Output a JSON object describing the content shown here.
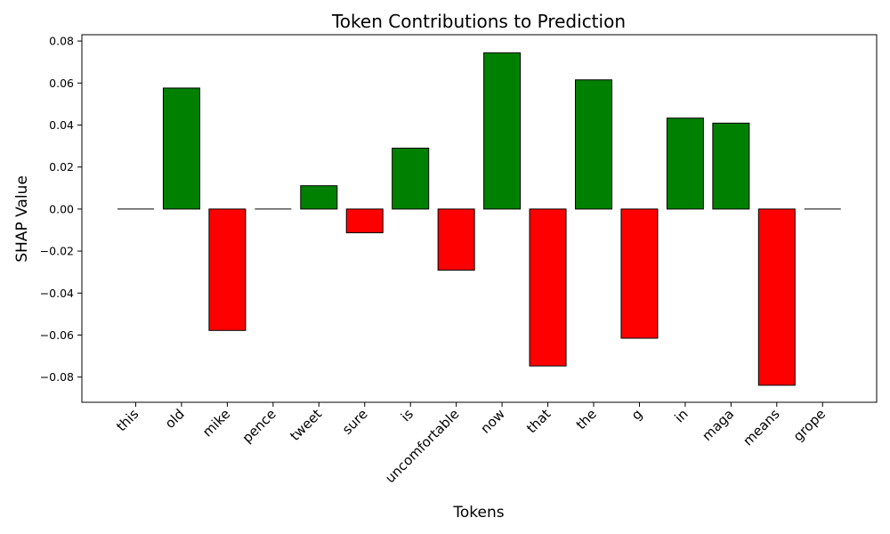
{
  "chart_data": {
    "type": "bar",
    "title": "Token Contributions to Prediction",
    "xlabel": "Tokens",
    "ylabel": "SHAP Value",
    "categories": [
      "this",
      "old",
      "mike",
      "pence",
      "tweet",
      "sure",
      "is",
      "uncomfortable",
      "now",
      "that",
      "the",
      "g",
      "in",
      "maga",
      "means",
      "grope"
    ],
    "values": [
      0.0,
      0.0576,
      -0.0578,
      0.0,
      0.0111,
      -0.0113,
      0.029,
      -0.0291,
      0.0744,
      -0.0747,
      0.0615,
      -0.0615,
      0.0433,
      0.0409,
      -0.0839,
      0.0
    ],
    "value_colors": [
      null,
      "green",
      "red",
      null,
      "green",
      "red",
      "green",
      "red",
      "green",
      "red",
      "green",
      "red",
      "green",
      "green",
      "red",
      null
    ],
    "ylim": [
      -0.092,
      0.083
    ],
    "yticks": [
      -0.08,
      -0.06,
      -0.04,
      -0.02,
      0.0,
      0.02,
      0.04,
      0.06,
      0.08
    ],
    "ytick_labels": [
      "−0.08",
      "−0.06",
      "−0.04",
      "−0.02",
      "0.00",
      "0.02",
      "0.04",
      "0.06",
      "0.08"
    ],
    "positive_color": "#008000",
    "negative_color": "#ff0000",
    "edge_color": "#000000",
    "grid": false,
    "legend": "none"
  }
}
